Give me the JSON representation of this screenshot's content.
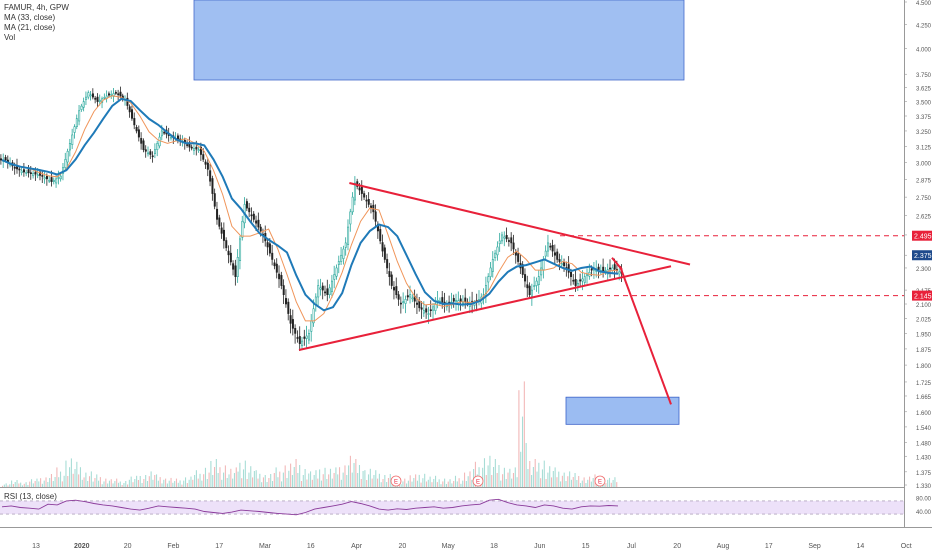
{
  "chart_data": {
    "type": "candlestick",
    "symbol": "FAMUR, 4h, GPW",
    "indicators": [
      "MA (33, close)",
      "MA (21, close)",
      "Vol"
    ],
    "rsi_label": "RSI (13, close)",
    "price_axis": {
      "min": 1.33,
      "max": 4.5,
      "ticks": [
        "4.500",
        "4.250",
        "4.000",
        "3.750",
        "3.625",
        "3.500",
        "3.375",
        "3.250",
        "3.125",
        "3.000",
        "2.875",
        "2.750",
        "2.625",
        "2.500",
        "2.375",
        "2.300",
        "2.175",
        "2.100",
        "2.025",
        "1.950",
        "1.875",
        "1.800",
        "1.725",
        "1.665",
        "1.600",
        "1.540",
        "1.480",
        "1.430",
        "1.375",
        "1.330"
      ],
      "scale": "log"
    },
    "rsi_axis": {
      "ticks": [
        "80.00",
        "40.00"
      ],
      "range": [
        0,
        100
      ],
      "band": [
        30,
        70
      ]
    },
    "time_axis": [
      "13",
      "2020",
      "20",
      "Feb",
      "17",
      "Mar",
      "16",
      "Apr",
      "20",
      "May",
      "18",
      "Jun",
      "15",
      "Jul",
      "20",
      "Aug",
      "17",
      "Sep",
      "14",
      "Oct"
    ],
    "price_labels": [
      {
        "text": "2.495",
        "value": 2.495,
        "color": "#e8213a"
      },
      {
        "text": "2.375",
        "value": 2.375,
        "color": "#1e4a8c"
      },
      {
        "text": "2.145",
        "value": 2.145,
        "color": "#e8213a"
      }
    ],
    "earnings_markers": [
      "E",
      "E",
      "E"
    ],
    "price_series": [
      {
        "t": 0,
        "p": 3.02
      },
      {
        "t": 1,
        "p": 2.96
      },
      {
        "t": 2,
        "p": 2.93
      },
      {
        "t": 3,
        "p": 2.92
      },
      {
        "t": 4,
        "p": 2.9
      },
      {
        "t": 5,
        "p": 2.86
      },
      {
        "t": 6,
        "p": 2.9
      },
      {
        "t": 7,
        "p": 3.15
      },
      {
        "t": 8,
        "p": 3.42
      },
      {
        "t": 9,
        "p": 3.58
      },
      {
        "t": 10,
        "p": 3.5
      },
      {
        "t": 11,
        "p": 3.55
      },
      {
        "t": 12,
        "p": 3.58
      },
      {
        "t": 13,
        "p": 3.52
      },
      {
        "t": 14,
        "p": 3.3
      },
      {
        "t": 15,
        "p": 3.1
      },
      {
        "t": 16,
        "p": 3.05
      },
      {
        "t": 17,
        "p": 3.25
      },
      {
        "t": 18,
        "p": 3.2
      },
      {
        "t": 19,
        "p": 3.18
      },
      {
        "t": 20,
        "p": 3.12
      },
      {
        "t": 21,
        "p": 3.1
      },
      {
        "t": 22,
        "p": 2.95
      },
      {
        "t": 23,
        "p": 2.6
      },
      {
        "t": 24,
        "p": 2.42
      },
      {
        "t": 25,
        "p": 2.25
      },
      {
        "t": 26,
        "p": 2.7
      },
      {
        "t": 27,
        "p": 2.6
      },
      {
        "t": 28,
        "p": 2.5
      },
      {
        "t": 29,
        "p": 2.35
      },
      {
        "t": 30,
        "p": 2.2
      },
      {
        "t": 31,
        "p": 2.0
      },
      {
        "t": 32,
        "p": 1.9
      },
      {
        "t": 33,
        "p": 1.95
      },
      {
        "t": 34,
        "p": 2.2
      },
      {
        "t": 35,
        "p": 2.15
      },
      {
        "t": 36,
        "p": 2.3
      },
      {
        "t": 37,
        "p": 2.45
      },
      {
        "t": 38,
        "p": 2.85
      },
      {
        "t": 39,
        "p": 2.75
      },
      {
        "t": 40,
        "p": 2.65
      },
      {
        "t": 41,
        "p": 2.4
      },
      {
        "t": 42,
        "p": 2.2
      },
      {
        "t": 43,
        "p": 2.1
      },
      {
        "t": 44,
        "p": 2.15
      },
      {
        "t": 45,
        "p": 2.08
      },
      {
        "t": 46,
        "p": 2.05
      },
      {
        "t": 47,
        "p": 2.12
      },
      {
        "t": 48,
        "p": 2.1
      },
      {
        "t": 49,
        "p": 2.12
      },
      {
        "t": 50,
        "p": 2.11
      },
      {
        "t": 51,
        "p": 2.1
      },
      {
        "t": 52,
        "p": 2.15
      },
      {
        "t": 53,
        "p": 2.35
      },
      {
        "t": 54,
        "p": 2.5
      },
      {
        "t": 55,
        "p": 2.45
      },
      {
        "t": 56,
        "p": 2.3
      },
      {
        "t": 57,
        "p": 2.15
      },
      {
        "t": 58,
        "p": 2.25
      },
      {
        "t": 59,
        "p": 2.45
      },
      {
        "t": 60,
        "p": 2.35
      },
      {
        "t": 61,
        "p": 2.3
      },
      {
        "t": 62,
        "p": 2.2
      },
      {
        "t": 63,
        "p": 2.25
      },
      {
        "t": 64,
        "p": 2.3
      },
      {
        "t": 65,
        "p": 2.28
      },
      {
        "t": 66,
        "p": 2.3
      },
      {
        "t": 67,
        "p": 2.27
      }
    ],
    "ma33_color": "#1f7ab8",
    "ma21_color": "#f0955a",
    "trend_color": "#e8213a",
    "zone_color": "#9bbcf2",
    "up_color": "#26a69a",
    "down_color": "#222222",
    "rsi_color": "#8a3a9a",
    "rsi_values": [
      52,
      55,
      50,
      48,
      45,
      60,
      58,
      70,
      72,
      68,
      62,
      58,
      55,
      50,
      45,
      42,
      48,
      55,
      52,
      50,
      48,
      45,
      38,
      35,
      32,
      36,
      42,
      40,
      38,
      35,
      32,
      30,
      28,
      35,
      45,
      50,
      55,
      60,
      68,
      62,
      55,
      45,
      42,
      46,
      44,
      48,
      50,
      52,
      48,
      50,
      55,
      58,
      60,
      72,
      75,
      65,
      58,
      55,
      50,
      58,
      55,
      48,
      45,
      52,
      55,
      54,
      56,
      55
    ]
  }
}
